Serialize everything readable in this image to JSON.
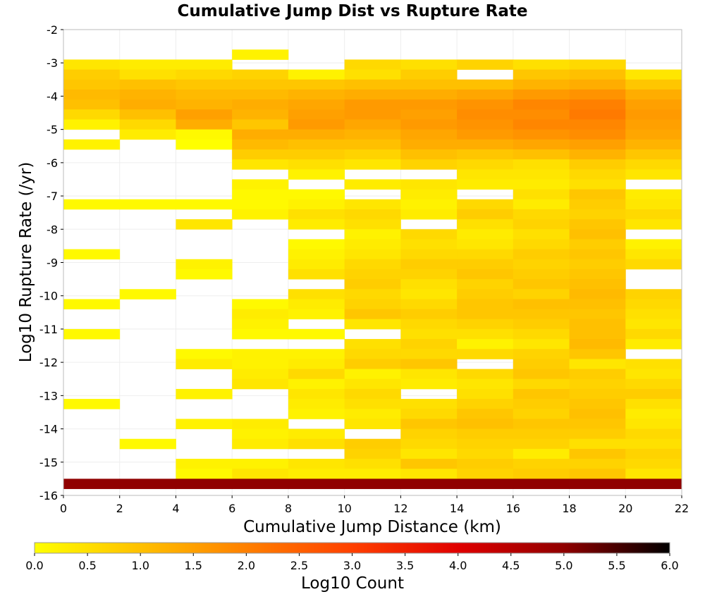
{
  "chart_data": {
    "type": "heatmap",
    "title": "Cumulative Jump Dist vs Rupture Rate",
    "xlabel": "Cumulative Jump Distance (km)",
    "ylabel": "Log10 Rupture Rate (/yr)",
    "colorbar_label": "Log10 Count",
    "xlim": [
      0,
      22
    ],
    "ylim": [
      -16,
      -2
    ],
    "clim": [
      0,
      6
    ],
    "x_ticks": [
      "0",
      "2",
      "4",
      "6",
      "8",
      "10",
      "12",
      "14",
      "16",
      "18",
      "20",
      "22"
    ],
    "y_ticks": [
      "-2",
      "-3",
      "-4",
      "-5",
      "-6",
      "-7",
      "-8",
      "-9",
      "-10",
      "-11",
      "-12",
      "-13",
      "-14",
      "-15",
      "-16"
    ],
    "colorbar_ticks": [
      "0.0",
      "0.5",
      "1.0",
      "1.5",
      "2.0",
      "2.5",
      "3.0",
      "3.5",
      "4.0",
      "4.5",
      "5.0",
      "5.5",
      "6.0"
    ],
    "x_bin_width": 2,
    "y_bin_height": 0.3,
    "y_bin_count": 46,
    "grid": true,
    "colormap": [
      "#ffff00",
      "#ffc000",
      "#ff8000",
      "#ff4000",
      "#e00000",
      "#900000",
      "#000000"
    ],
    "columns": [
      {
        "x": 1,
        "values": [
          null,
          null,
          null,
          0.4,
          0.8,
          0.9,
          1.1,
          1.0,
          0.6,
          0.2,
          null,
          0.2,
          null,
          null,
          null,
          null,
          null,
          0.1,
          null,
          null,
          null,
          null,
          0.1,
          null,
          null,
          null,
          null,
          0.1,
          null,
          null,
          0.1,
          null,
          null,
          null,
          null,
          null,
          null,
          0.1,
          null,
          null,
          null,
          null,
          null,
          null,
          null,
          5.0
        ]
      },
      {
        "x": 3,
        "values": [
          null,
          null,
          null,
          0.3,
          0.5,
          1.0,
          1.2,
          1.3,
          1.0,
          0.6,
          0.3,
          null,
          null,
          null,
          null,
          null,
          null,
          0.1,
          null,
          null,
          null,
          null,
          null,
          null,
          null,
          null,
          0.1,
          null,
          null,
          null,
          null,
          null,
          null,
          null,
          null,
          null,
          null,
          null,
          null,
          null,
          null,
          0.1,
          null,
          null,
          null,
          5.0
        ]
      },
      {
        "x": 5,
        "values": [
          null,
          null,
          null,
          0.3,
          0.6,
          0.9,
          1.1,
          1.2,
          1.5,
          1.3,
          0.1,
          0.0,
          null,
          null,
          null,
          null,
          null,
          0.1,
          null,
          0.4,
          null,
          null,
          null,
          0.2,
          0.1,
          null,
          null,
          null,
          null,
          null,
          null,
          null,
          0.1,
          0.3,
          null,
          null,
          0.2,
          null,
          null,
          0.2,
          null,
          null,
          null,
          0.2,
          0.1,
          5.0
        ]
      },
      {
        "x": 7,
        "values": [
          null,
          null,
          0.2,
          null,
          0.7,
          0.9,
          1.1,
          1.3,
          1.2,
          0.9,
          1.3,
          1.1,
          0.8,
          0.4,
          null,
          0.2,
          0.1,
          0.1,
          0.2,
          null,
          null,
          null,
          null,
          null,
          null,
          null,
          null,
          0.1,
          0.3,
          0.2,
          0.1,
          null,
          0.2,
          0.2,
          0.3,
          0.4,
          null,
          null,
          null,
          0.3,
          0.2,
          0.3,
          null,
          0.2,
          0.4,
          5.0
        ]
      },
      {
        "x": 9,
        "values": [
          null,
          null,
          null,
          null,
          0.2,
          0.9,
          1.2,
          1.4,
          1.5,
          1.6,
          1.3,
          1.0,
          0.8,
          0.5,
          0.2,
          null,
          0.1,
          0.2,
          0.5,
          0.3,
          null,
          0.1,
          0.2,
          0.3,
          0.5,
          null,
          0.5,
          0.3,
          0.2,
          null,
          0.1,
          null,
          0.2,
          0.3,
          0.6,
          0.2,
          0.4,
          0.3,
          0.2,
          null,
          0.3,
          0.5,
          null,
          0.4,
          0.3,
          5.0
        ]
      },
      {
        "x": 11,
        "values": [
          null,
          null,
          null,
          0.6,
          0.5,
          1.0,
          1.3,
          1.6,
          1.6,
          1.4,
          1.2,
          1.0,
          0.7,
          0.4,
          null,
          0.3,
          null,
          0.4,
          0.6,
          0.5,
          0.2,
          0.3,
          0.4,
          0.6,
          0.7,
          0.8,
          0.6,
          0.7,
          0.9,
          0.4,
          null,
          0.5,
          0.6,
          0.8,
          0.2,
          0.4,
          0.6,
          0.5,
          0.3,
          0.4,
          null,
          0.8,
          0.7,
          0.5,
          0.3,
          5.0
        ]
      },
      {
        "x": 13,
        "values": [
          null,
          null,
          null,
          0.5,
          0.8,
          1.0,
          1.3,
          1.6,
          1.5,
          1.6,
          1.4,
          1.3,
          1.0,
          0.7,
          null,
          0.4,
          0.3,
          0.2,
          0.3,
          null,
          0.6,
          0.5,
          0.6,
          0.8,
          0.7,
          0.5,
          0.4,
          0.6,
          0.8,
          0.6,
          0.5,
          0.7,
          0.6,
          0.9,
          0.4,
          0.3,
          null,
          0.5,
          0.6,
          0.9,
          0.7,
          0.6,
          0.4,
          0.9,
          0.4,
          5.0
        ]
      },
      {
        "x": 15,
        "values": [
          null,
          null,
          null,
          0.7,
          null,
          1.0,
          1.4,
          1.7,
          1.8,
          1.7,
          1.6,
          1.3,
          0.9,
          0.6,
          0.4,
          0.3,
          null,
          0.6,
          0.8,
          0.5,
          0.3,
          0.4,
          0.6,
          0.8,
          0.9,
          0.7,
          0.8,
          0.9,
          0.9,
          0.7,
          0.5,
          0.2,
          0.6,
          null,
          0.6,
          0.4,
          0.5,
          0.7,
          0.9,
          1.0,
          0.8,
          0.7,
          0.6,
          0.8,
          0.7,
          5.0
        ]
      },
      {
        "x": 17,
        "values": [
          null,
          null,
          null,
          0.5,
          0.9,
          1.2,
          1.6,
          1.9,
          1.8,
          1.9,
          1.7,
          1.4,
          1.0,
          0.5,
          0.4,
          0.3,
          0.5,
          0.3,
          0.6,
          0.7,
          0.5,
          0.6,
          0.8,
          0.7,
          0.8,
          0.9,
          0.7,
          1.0,
          0.9,
          0.8,
          0.6,
          0.4,
          0.7,
          0.8,
          0.9,
          0.6,
          0.9,
          0.8,
          0.7,
          0.9,
          0.8,
          0.7,
          0.3,
          0.7,
          0.8,
          5.0
        ]
      },
      {
        "x": 19,
        "values": [
          null,
          null,
          null,
          0.6,
          1.0,
          1.3,
          1.7,
          2.0,
          2.1,
          1.9,
          1.8,
          1.5,
          1.2,
          0.8,
          0.6,
          0.5,
          0.9,
          0.8,
          0.7,
          0.9,
          1.0,
          0.8,
          0.9,
          0.8,
          0.9,
          1.0,
          1.1,
          1.0,
          0.9,
          1.0,
          1.0,
          1.1,
          0.9,
          0.4,
          0.8,
          0.7,
          0.8,
          0.9,
          1.0,
          0.9,
          0.8,
          0.5,
          0.9,
          0.7,
          0.9,
          5.0
        ]
      },
      {
        "x": 21,
        "values": [
          null,
          null,
          null,
          null,
          0.4,
          0.9,
          1.3,
          1.5,
          1.6,
          1.5,
          1.4,
          1.2,
          0.9,
          0.6,
          0.4,
          null,
          0.3,
          0.4,
          0.6,
          0.4,
          null,
          0.2,
          0.4,
          0.6,
          null,
          null,
          0.7,
          0.6,
          0.5,
          0.4,
          0.6,
          0.3,
          null,
          0.5,
          0.4,
          0.6,
          0.8,
          0.5,
          0.3,
          0.4,
          0.6,
          0.5,
          0.7,
          0.6,
          0.4,
          5.0
        ]
      }
    ]
  }
}
